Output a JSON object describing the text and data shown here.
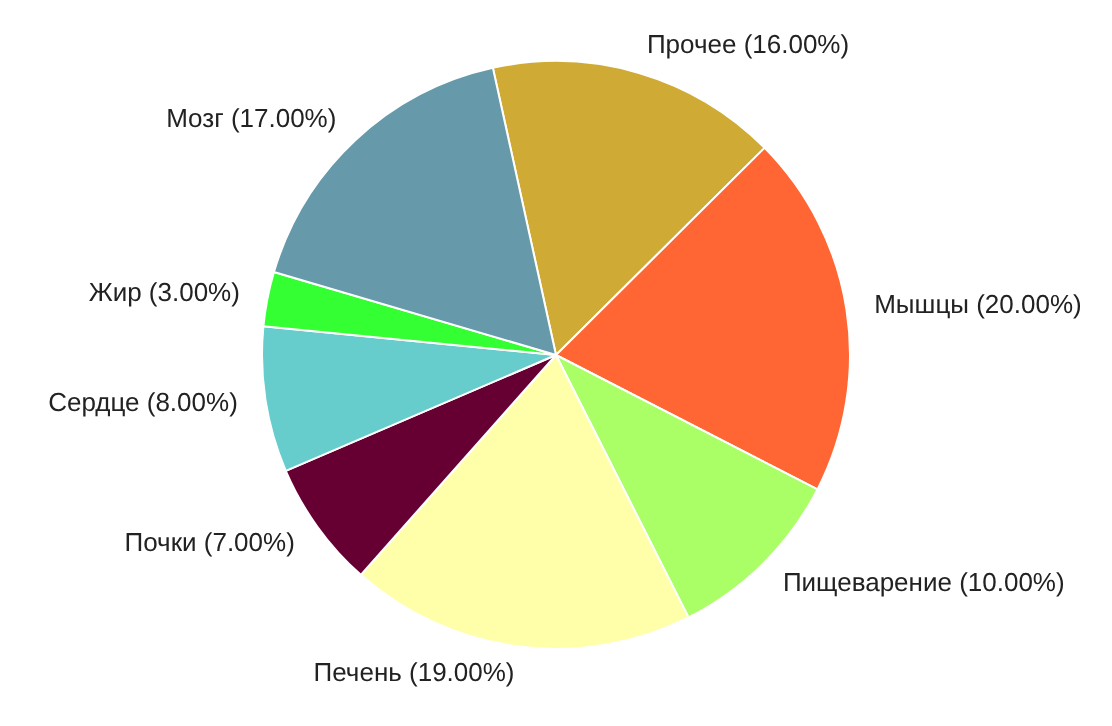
{
  "chart_data": {
    "type": "pie",
    "categories": [
      "Прочее",
      "Мышцы",
      "Пищеварение",
      "Печень",
      "Почки",
      "Сердце",
      "Жир",
      "Мозг"
    ],
    "values": [
      16,
      20,
      10,
      19,
      7,
      8,
      3,
      17
    ],
    "value_labels": [
      "(16.00%)",
      "(20.00%)",
      "(10.00%)",
      "(19.00%)",
      "(7.00%)",
      "(8.00%)",
      "(3.00%)",
      "(17.00%)"
    ],
    "colors": [
      "#cfab35",
      "#ff6633",
      "#aaff66",
      "#ffffaa",
      "#660033",
      "#66cccc",
      "#33ff33",
      "#6699aa"
    ],
    "legend": false
  }
}
